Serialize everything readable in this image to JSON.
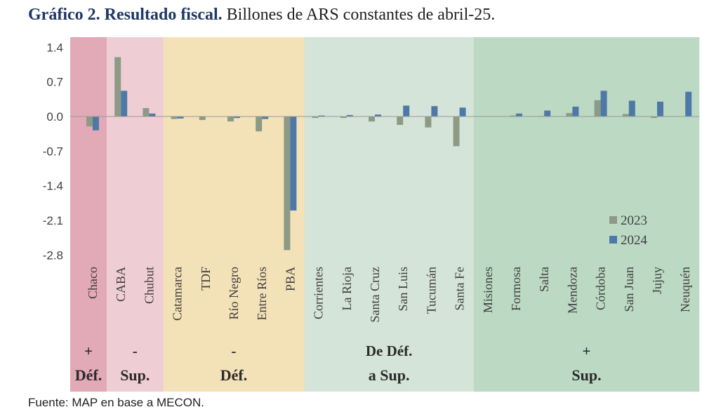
{
  "header": {
    "title_bold": "Gráfico 2. Resultado fiscal.",
    "title_rest": "Billones de ARS constantes de abril-25."
  },
  "source": "Fuente: MAP en base a MECON.",
  "chart_data": {
    "type": "bar",
    "categories": [
      "Chaco",
      "CABA",
      "Chubut",
      "Catamarca",
      "TDF",
      "Río Negro",
      "Entre Ríos",
      "PBA",
      "Corrientes",
      "La Rioja",
      "Santa Cruz",
      "San Luis",
      "Tucumán",
      "Santa Fe",
      "Misiones",
      "Formosa",
      "Salta",
      "Mendoza",
      "Córdoba",
      "San Juan",
      "Jujuy",
      "Neuquén"
    ],
    "series": [
      {
        "name": "2023",
        "color": "#8c9a86",
        "values": [
          -0.2,
          1.2,
          0.17,
          -0.05,
          -0.07,
          -0.1,
          -0.3,
          -2.7,
          -0.03,
          -0.03,
          -0.1,
          -0.17,
          -0.22,
          -0.6,
          0.0,
          0.02,
          0.01,
          0.07,
          0.33,
          0.05,
          -0.03,
          0.0
        ]
      },
      {
        "name": "2024",
        "color": "#4e79a7",
        "values": [
          -0.28,
          0.52,
          0.06,
          -0.04,
          0.0,
          -0.03,
          -0.05,
          -1.9,
          0.02,
          0.03,
          0.04,
          0.22,
          0.21,
          0.18,
          0.0,
          0.06,
          0.12,
          0.2,
          0.52,
          0.32,
          0.3,
          0.5
        ]
      }
    ],
    "yticks": [
      "1.4",
      "0.7",
      "0.0",
      "-0.7",
      "-1.4",
      "-2.1",
      "-2.8"
    ],
    "ylim": [
      -2.8,
      1.4
    ],
    "legend_position": "bottom-right",
    "groups": [
      {
        "line1": "+",
        "line2": "Déf.",
        "color": "#e2a9b6",
        "start": 0,
        "end": 0
      },
      {
        "line1": "-",
        "line2": "Sup.",
        "color": "#efcdd4",
        "start": 1,
        "end": 2
      },
      {
        "line1": "-",
        "line2": "Déf.",
        "color": "#f3e2b7",
        "start": 3,
        "end": 7
      },
      {
        "line1": "De Déf.",
        "line2": "a Sup.",
        "color": "#d5e4d8",
        "start": 8,
        "end": 13
      },
      {
        "line1": "+",
        "line2": "Sup.",
        "color": "#bcd9c4",
        "start": 14,
        "end": 21
      }
    ]
  }
}
